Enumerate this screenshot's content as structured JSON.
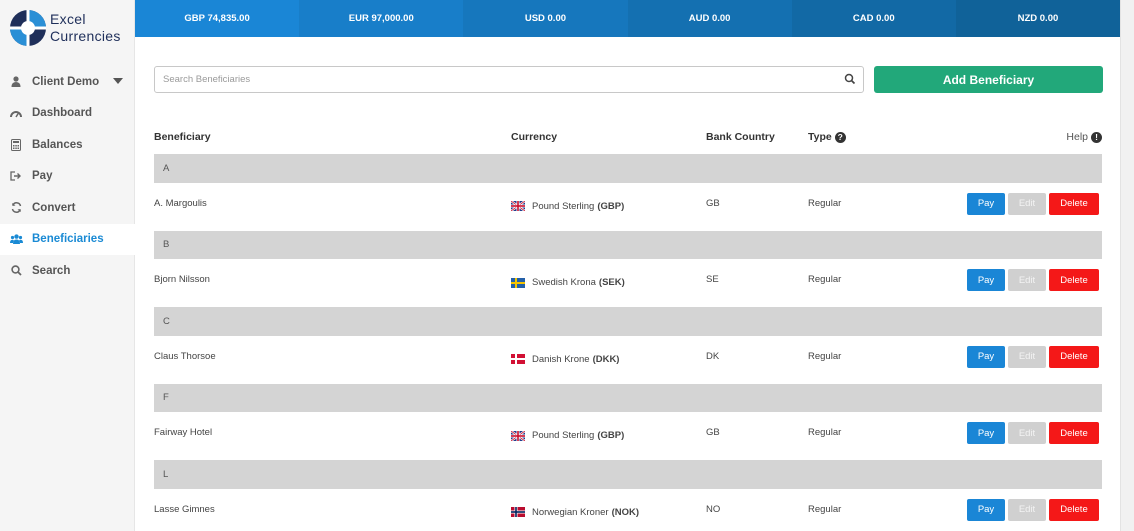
{
  "brand": {
    "line1": "Excel",
    "line2": "Currencies"
  },
  "colors": {
    "accent": "#1a8ad4",
    "add": "#22a87a",
    "pay": "#1a86d6",
    "delete": "#f41818"
  },
  "balances": [
    {
      "label": "GBP 74,835.00",
      "color": "#1a86d6"
    },
    {
      "label": "EUR 97,000.00",
      "color": "#187ec9"
    },
    {
      "label": "USD 0.00",
      "color": "#1677bd"
    },
    {
      "label": "AUD 0.00",
      "color": "#1470b1"
    },
    {
      "label": "CAD 0.00",
      "color": "#1269a5"
    },
    {
      "label": "NZD 0.00",
      "color": "#106299"
    }
  ],
  "sidebar": {
    "items": [
      {
        "label": "Client Demo",
        "icon": "user-icon"
      },
      {
        "label": "Dashboard",
        "icon": "dashboard-icon"
      },
      {
        "label": "Balances",
        "icon": "calculator-icon"
      },
      {
        "label": "Pay",
        "icon": "sign-out-icon"
      },
      {
        "label": "Convert",
        "icon": "refresh-icon"
      },
      {
        "label": "Beneficiaries",
        "icon": "users-icon",
        "active": true
      },
      {
        "label": "Search",
        "icon": "search-icon"
      }
    ]
  },
  "search": {
    "placeholder": "Search Beneficiaries"
  },
  "add_button": "Add Beneficiary",
  "table": {
    "headers": {
      "beneficiary": "Beneficiary",
      "currency": "Currency",
      "bank_country": "Bank Country",
      "type": "Type",
      "help": "Help"
    },
    "actions": {
      "pay": "Pay",
      "edit": "Edit",
      "delete": "Delete"
    },
    "groups": [
      {
        "letter": "A",
        "rows": [
          {
            "name": "A. Margoulis",
            "currency": "Pound Sterling",
            "code": "(GBP)",
            "flag": "gb",
            "country": "GB",
            "type": "Regular"
          }
        ]
      },
      {
        "letter": "B",
        "rows": [
          {
            "name": "Bjorn Nilsson",
            "currency": "Swedish Krona",
            "code": "(SEK)",
            "flag": "se",
            "country": "SE",
            "type": "Regular"
          }
        ]
      },
      {
        "letter": "C",
        "rows": [
          {
            "name": "Claus Thorsoe",
            "currency": "Danish Krone",
            "code": "(DKK)",
            "flag": "dk",
            "country": "DK",
            "type": "Regular"
          }
        ]
      },
      {
        "letter": "F",
        "rows": [
          {
            "name": "Fairway Hotel",
            "currency": "Pound Sterling",
            "code": "(GBP)",
            "flag": "gb",
            "country": "GB",
            "type": "Regular"
          }
        ]
      },
      {
        "letter": "L",
        "rows": [
          {
            "name": "Lasse Gimnes",
            "currency": "Norwegian Kroner",
            "code": "(NOK)",
            "flag": "no",
            "country": "NO",
            "type": "Regular"
          }
        ]
      }
    ]
  }
}
